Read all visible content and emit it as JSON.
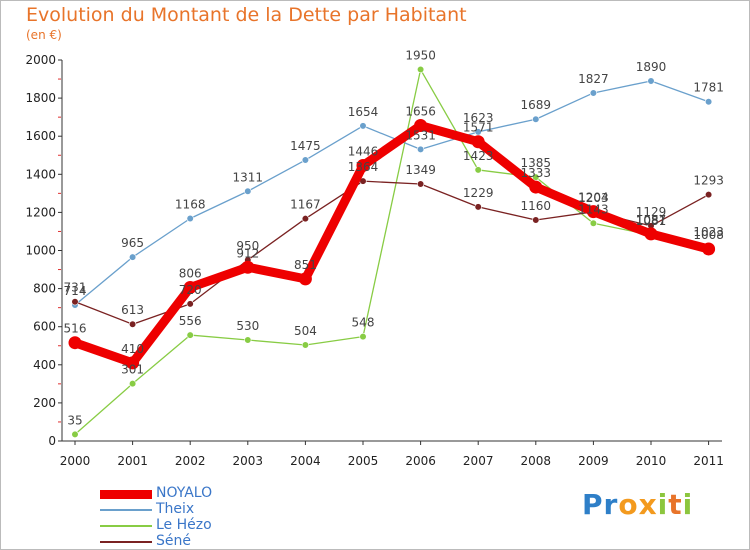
{
  "chart_data": {
    "type": "line",
    "title": "Evolution du Montant de la Dette par Habitant",
    "subtitle": "(en €)",
    "xlabel": "",
    "ylabel": "",
    "ylim": [
      0,
      2000
    ],
    "yticks": [
      0,
      200,
      400,
      600,
      800,
      1000,
      1200,
      1400,
      1600,
      1800,
      2000
    ],
    "categories": [
      "2000",
      "2001",
      "2002",
      "2003",
      "2004",
      "2005",
      "2006",
      "2007",
      "2008",
      "2009",
      "2010",
      "2011"
    ],
    "grid": false,
    "legend_position": "bottom-left",
    "series": [
      {
        "name": "NOYALO",
        "color": "#ee0000",
        "values": [
          516,
          410,
          806,
          912,
          851,
          1446,
          1656,
          1571,
          1333,
          1204,
          1087,
          1008
        ]
      },
      {
        "name": "Theix",
        "color": "#6aa0cc",
        "values": [
          714,
          965,
          1168,
          1311,
          1475,
          1654,
          1531,
          1623,
          1689,
          1827,
          1890,
          1781
        ]
      },
      {
        "name": "Le Hézo",
        "color": "#88cc44",
        "values": [
          35,
          301,
          556,
          530,
          504,
          548,
          1950,
          1423,
          1385,
          1143,
          1081,
          1023
        ]
      },
      {
        "name": "Séné",
        "color": "#7a2222",
        "values": [
          731,
          613,
          720,
          950,
          1167,
          1364,
          1349,
          1229,
          1160,
          1203,
          1129,
          1293
        ]
      }
    ]
  },
  "logo": {
    "letters": [
      "P",
      "r",
      "o",
      "x",
      "i",
      "t",
      "i"
    ],
    "colors": [
      "#2e7fc8",
      "#2e7fc8",
      "#f39a1e",
      "#f39a1e",
      "#8cc63e",
      "#e8742a",
      "#8cc63e"
    ]
  }
}
